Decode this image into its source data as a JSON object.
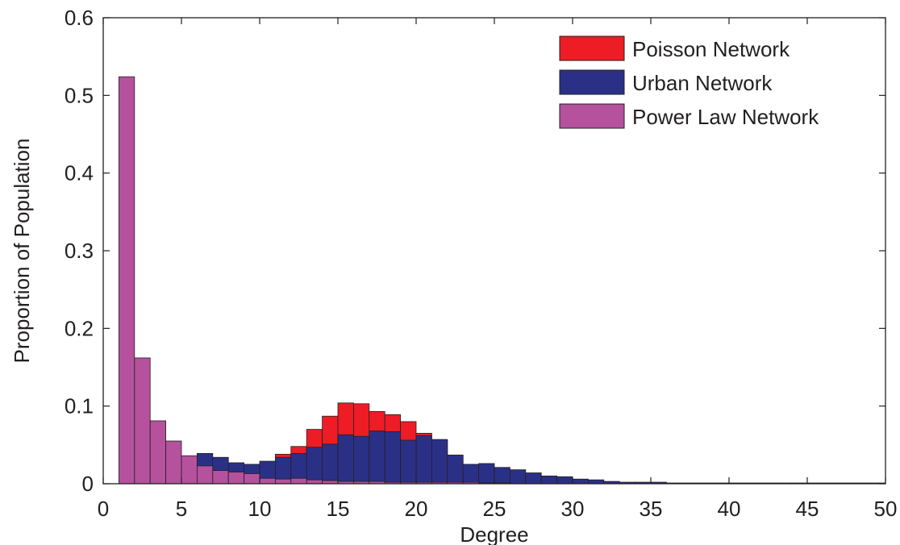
{
  "chart_data": {
    "type": "bar",
    "xlabel": "Degree",
    "ylabel": "Proportion of Population",
    "xlim": [
      0,
      50
    ],
    "ylim": [
      0,
      0.6
    ],
    "xticks": [
      "0",
      "5",
      "10",
      "15",
      "20",
      "25",
      "30",
      "35",
      "40",
      "45",
      "50"
    ],
    "yticks": [
      "0",
      "0.1",
      "0.2",
      "0.3",
      "0.4",
      "0.5",
      "0.6"
    ],
    "grid": false,
    "legend": "top-right",
    "bin_width": 1,
    "series": [
      {
        "name": "Poisson Network",
        "color": "#ee1c25",
        "x": [
          6,
          7,
          8,
          9,
          10,
          11,
          12,
          13,
          14,
          15,
          16,
          17,
          18,
          19,
          20,
          21,
          22,
          23,
          24,
          25,
          26,
          27,
          28,
          29,
          30
        ],
        "values": [
          0.004,
          0.006,
          0.011,
          0.018,
          0.026,
          0.038,
          0.048,
          0.07,
          0.087,
          0.104,
          0.103,
          0.093,
          0.089,
          0.08,
          0.065,
          0.056,
          0.036,
          0.025,
          0.016,
          0.01,
          0.006,
          0.004,
          0.002,
          0.001,
          0.001
        ]
      },
      {
        "name": "Urban Network",
        "color": "#2b3087",
        "x": [
          1,
          2,
          3,
          4,
          5,
          6,
          7,
          8,
          9,
          10,
          11,
          12,
          13,
          14,
          15,
          16,
          17,
          18,
          19,
          20,
          21,
          22,
          23,
          24,
          25,
          26,
          27,
          28,
          29,
          30,
          31,
          32,
          33,
          34,
          35,
          36,
          37,
          38,
          39,
          40,
          41,
          42,
          43,
          44,
          45,
          46,
          47,
          48,
          49
        ],
        "values": [
          0.004,
          0.009,
          0.016,
          0.022,
          0.028,
          0.039,
          0.034,
          0.027,
          0.025,
          0.029,
          0.034,
          0.039,
          0.047,
          0.051,
          0.063,
          0.061,
          0.068,
          0.067,
          0.056,
          0.062,
          0.057,
          0.037,
          0.025,
          0.026,
          0.021,
          0.018,
          0.014,
          0.01,
          0.009,
          0.006,
          0.005,
          0.003,
          0.002,
          0.002,
          0.002,
          0.001,
          0.001,
          0.001,
          0.001,
          0.001,
          0.001,
          0.001,
          0.001,
          0.001,
          0.001,
          0.001,
          0.001,
          0.001,
          0.001
        ]
      },
      {
        "name": "Power Law Network",
        "color": "#b6519e",
        "x": [
          1,
          2,
          3,
          4,
          5,
          6,
          7,
          8,
          9,
          10,
          11,
          12,
          13,
          14,
          15,
          16,
          17,
          18,
          19,
          20,
          21,
          22,
          23,
          24,
          25
        ],
        "values": [
          0.524,
          0.162,
          0.081,
          0.055,
          0.036,
          0.023,
          0.017,
          0.015,
          0.013,
          0.007,
          0.006,
          0.007,
          0.005,
          0.004,
          0.003,
          0.003,
          0.003,
          0.002,
          0.002,
          0.002,
          0.002,
          0.002,
          0.002,
          0.001,
          0.001
        ]
      }
    ]
  }
}
